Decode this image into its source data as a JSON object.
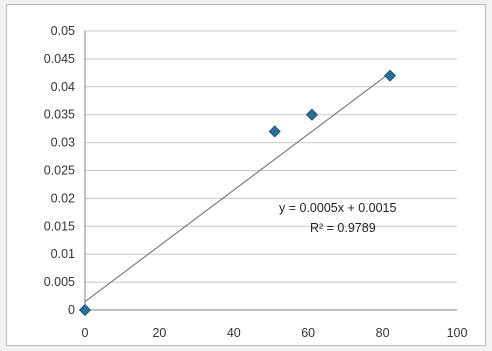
{
  "chart_data": {
    "type": "scatter",
    "title": "",
    "xlabel": "",
    "ylabel": "",
    "xlim": [
      0,
      100
    ],
    "ylim": [
      0,
      0.05
    ],
    "x_ticks": [
      0,
      20,
      40,
      60,
      80,
      100
    ],
    "x_tick_labels": [
      "0",
      "20",
      "40",
      "60",
      "80",
      "100"
    ],
    "y_ticks": [
      0,
      0.005,
      0.01,
      0.015,
      0.02,
      0.025,
      0.03,
      0.035,
      0.04,
      0.045,
      0.05
    ],
    "y_tick_labels": [
      "0",
      "0.005",
      "0.01",
      "0.015",
      "0.02",
      "0.025",
      "0.03",
      "0.035",
      "0.04",
      "0.045",
      "0.05"
    ],
    "grid": "horizontal",
    "legend": "none",
    "series": [
      {
        "x": [
          0,
          51,
          61,
          82
        ],
        "y": [
          0,
          0.032,
          0.035,
          0.042
        ],
        "marker": "diamond",
        "color": "#2a6f97"
      }
    ],
    "trendline": {
      "type": "linear",
      "slope": 0.0005,
      "intercept": 0.0015,
      "x_range": [
        0,
        82
      ],
      "color": "#666666",
      "equation_text": "y = 0.0005x + 0.0015",
      "r2_text": "R² = 0.9789"
    }
  }
}
